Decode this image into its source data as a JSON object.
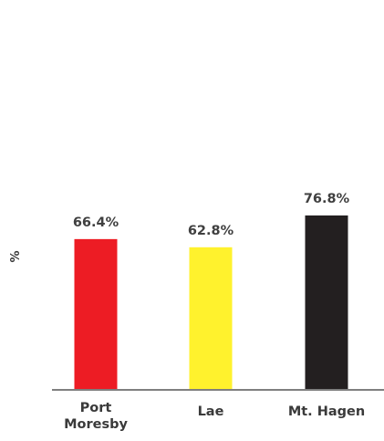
{
  "chart_data": {
    "type": "bar",
    "title": "",
    "xlabel": "",
    "ylabel": "%",
    "ylim": [
      0,
      100
    ],
    "grid": false,
    "legend": "none",
    "categories": [
      [
        "Port",
        "Moresby"
      ],
      [
        "Lae"
      ],
      [
        "Mt. Hagen"
      ]
    ],
    "values": [
      66.4,
      62.8,
      76.8
    ],
    "data_labels": [
      "66.4%",
      "62.8%",
      "76.8%"
    ],
    "colors": [
      "#ed1c24",
      "#fff22d",
      "#231f20"
    ],
    "axis_color": "#7f7f7f"
  }
}
